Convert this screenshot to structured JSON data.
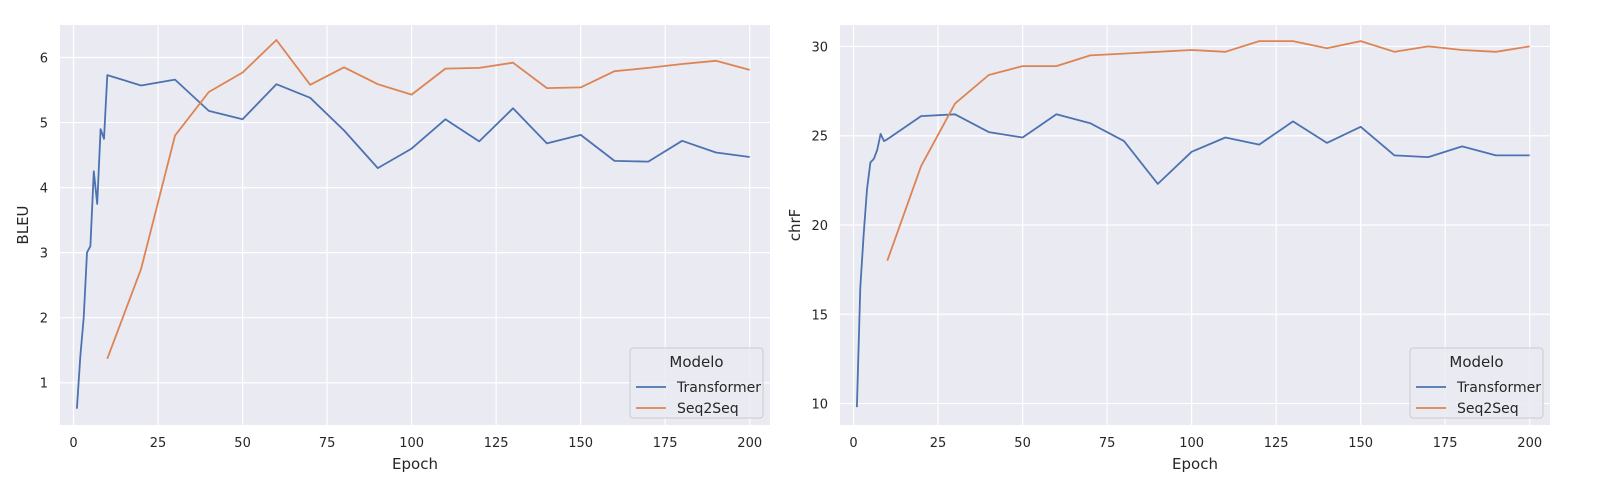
{
  "colors": {
    "Transformer": "#4c72b0",
    "Seq2Seq": "#dd8452",
    "panel_bg": "#eaeaf2",
    "grid": "#ffffff"
  },
  "chart_data": [
    {
      "type": "line",
      "xlabel": "Epoch",
      "ylabel": "BLEU",
      "xlim": [
        -4,
        206
      ],
      "ylim": [
        0.35,
        6.5
      ],
      "xticks": [
        "0",
        "25",
        "50",
        "75",
        "100",
        "125",
        "150",
        "175",
        "200"
      ],
      "yticks": [
        "1",
        "2",
        "3",
        "4",
        "5",
        "6"
      ],
      "grid": true,
      "legend_placement": "bottom-right",
      "legend_title": "Modelo",
      "series": [
        {
          "name": "Transformer",
          "x": [
            1,
            2,
            3,
            4,
            5,
            6,
            7,
            8,
            9,
            10,
            20,
            30,
            40,
            50,
            60,
            70,
            80,
            90,
            100,
            110,
            120,
            130,
            140,
            150,
            160,
            170,
            180,
            190,
            200
          ],
          "y": [
            0.6,
            1.4,
            2.0,
            3.0,
            3.1,
            4.25,
            3.75,
            4.9,
            4.75,
            5.73,
            5.57,
            5.66,
            5.18,
            5.05,
            5.59,
            5.38,
            4.88,
            4.3,
            4.6,
            5.05,
            4.71,
            5.22,
            4.68,
            4.81,
            4.41,
            4.4,
            4.72,
            4.54,
            4.47
          ]
        },
        {
          "name": "Seq2Seq",
          "x": [
            10,
            20,
            30,
            40,
            50,
            60,
            70,
            80,
            90,
            100,
            110,
            120,
            130,
            140,
            150,
            160,
            170,
            180,
            190,
            200
          ],
          "y": [
            1.37,
            2.75,
            4.8,
            5.47,
            5.77,
            6.27,
            5.58,
            5.85,
            5.59,
            5.43,
            5.83,
            5.84,
            5.92,
            5.53,
            5.54,
            5.79,
            5.84,
            5.9,
            5.95,
            5.81
          ]
        }
      ]
    },
    {
      "type": "line",
      "xlabel": "Epoch",
      "ylabel": "chrF",
      "xlim": [
        -4,
        206
      ],
      "ylim": [
        8.8,
        31.2
      ],
      "xticks": [
        "0",
        "25",
        "50",
        "75",
        "100",
        "125",
        "150",
        "175",
        "200"
      ],
      "yticks": [
        "10",
        "15",
        "20",
        "25",
        "30"
      ],
      "grid": true,
      "legend_placement": "bottom-right",
      "legend_title": "Modelo",
      "series": [
        {
          "name": "Transformer",
          "x": [
            1,
            2,
            3,
            4,
            5,
            6,
            7,
            8,
            9,
            10,
            20,
            30,
            40,
            50,
            60,
            70,
            80,
            90,
            100,
            110,
            120,
            130,
            140,
            150,
            160,
            170,
            180,
            190,
            200
          ],
          "y": [
            9.8,
            16.5,
            19.5,
            22.0,
            23.5,
            23.7,
            24.2,
            25.1,
            24.7,
            24.8,
            26.1,
            26.2,
            25.2,
            24.9,
            26.2,
            25.7,
            24.7,
            22.3,
            24.1,
            24.9,
            24.5,
            25.8,
            24.6,
            25.5,
            23.9,
            23.8,
            24.4,
            23.9,
            23.9
          ]
        },
        {
          "name": "Seq2Seq",
          "x": [
            10,
            20,
            30,
            40,
            50,
            60,
            70,
            80,
            90,
            100,
            110,
            120,
            130,
            140,
            150,
            160,
            170,
            180,
            190,
            200
          ],
          "y": [
            18.0,
            23.3,
            26.8,
            28.4,
            28.9,
            28.9,
            29.5,
            29.6,
            29.7,
            29.8,
            29.7,
            30.3,
            30.3,
            29.9,
            30.3,
            29.7,
            30.0,
            29.8,
            29.7,
            30.0
          ]
        }
      ]
    }
  ]
}
